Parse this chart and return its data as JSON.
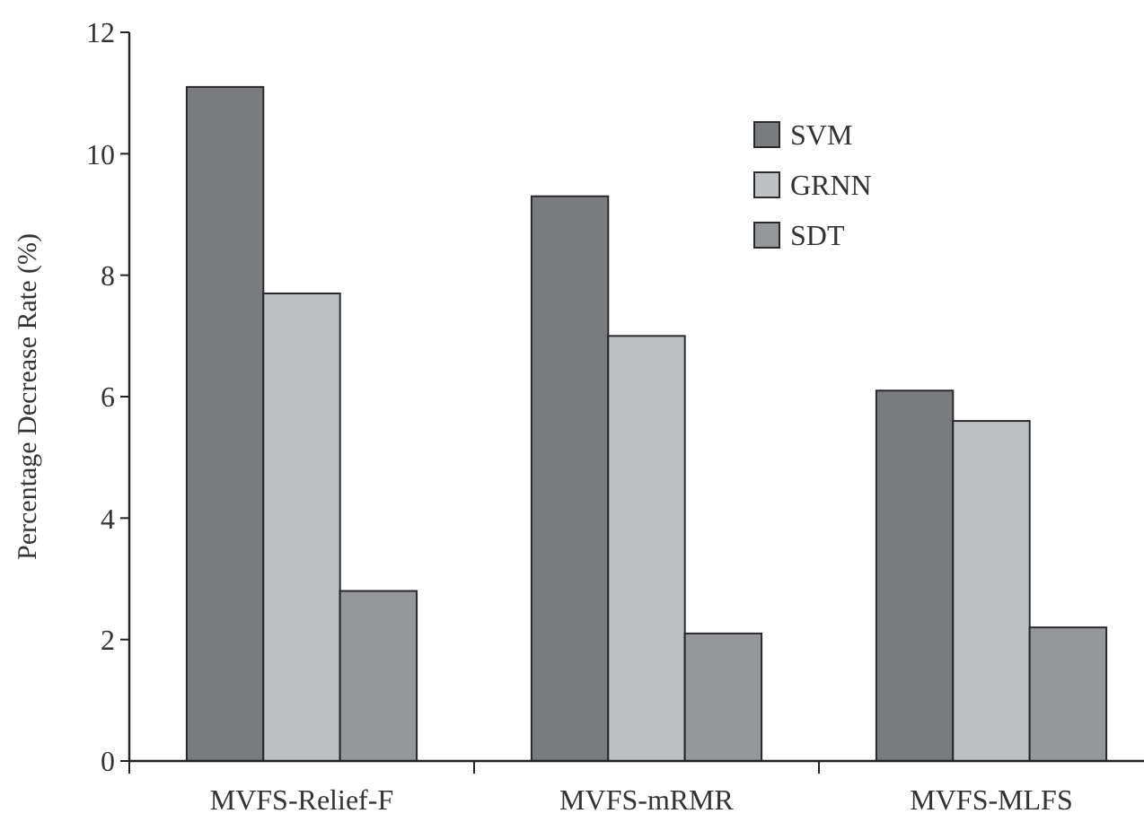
{
  "chart_data": {
    "type": "bar",
    "ylabel": "Percentage Decrease Rate (%)",
    "categories": [
      "MVFS-Relief-F",
      "MVFS-mRMR",
      "MVFS-MLFS"
    ],
    "series": [
      {
        "name": "SVM",
        "color": "#7a7b7f",
        "values": [
          11.1,
          9.3,
          6.1
        ]
      },
      {
        "name": "GRNN",
        "color": "#bfc0c4",
        "values": [
          7.7,
          7.0,
          5.6
        ]
      },
      {
        "name": "SDT",
        "color": "#96979b",
        "values": [
          2.8,
          2.1,
          2.2
        ]
      }
    ],
    "ylim": [
      0,
      12
    ],
    "yticks": [
      0,
      2,
      4,
      6,
      8,
      10,
      12
    ],
    "grid": false,
    "legend": "top right"
  }
}
